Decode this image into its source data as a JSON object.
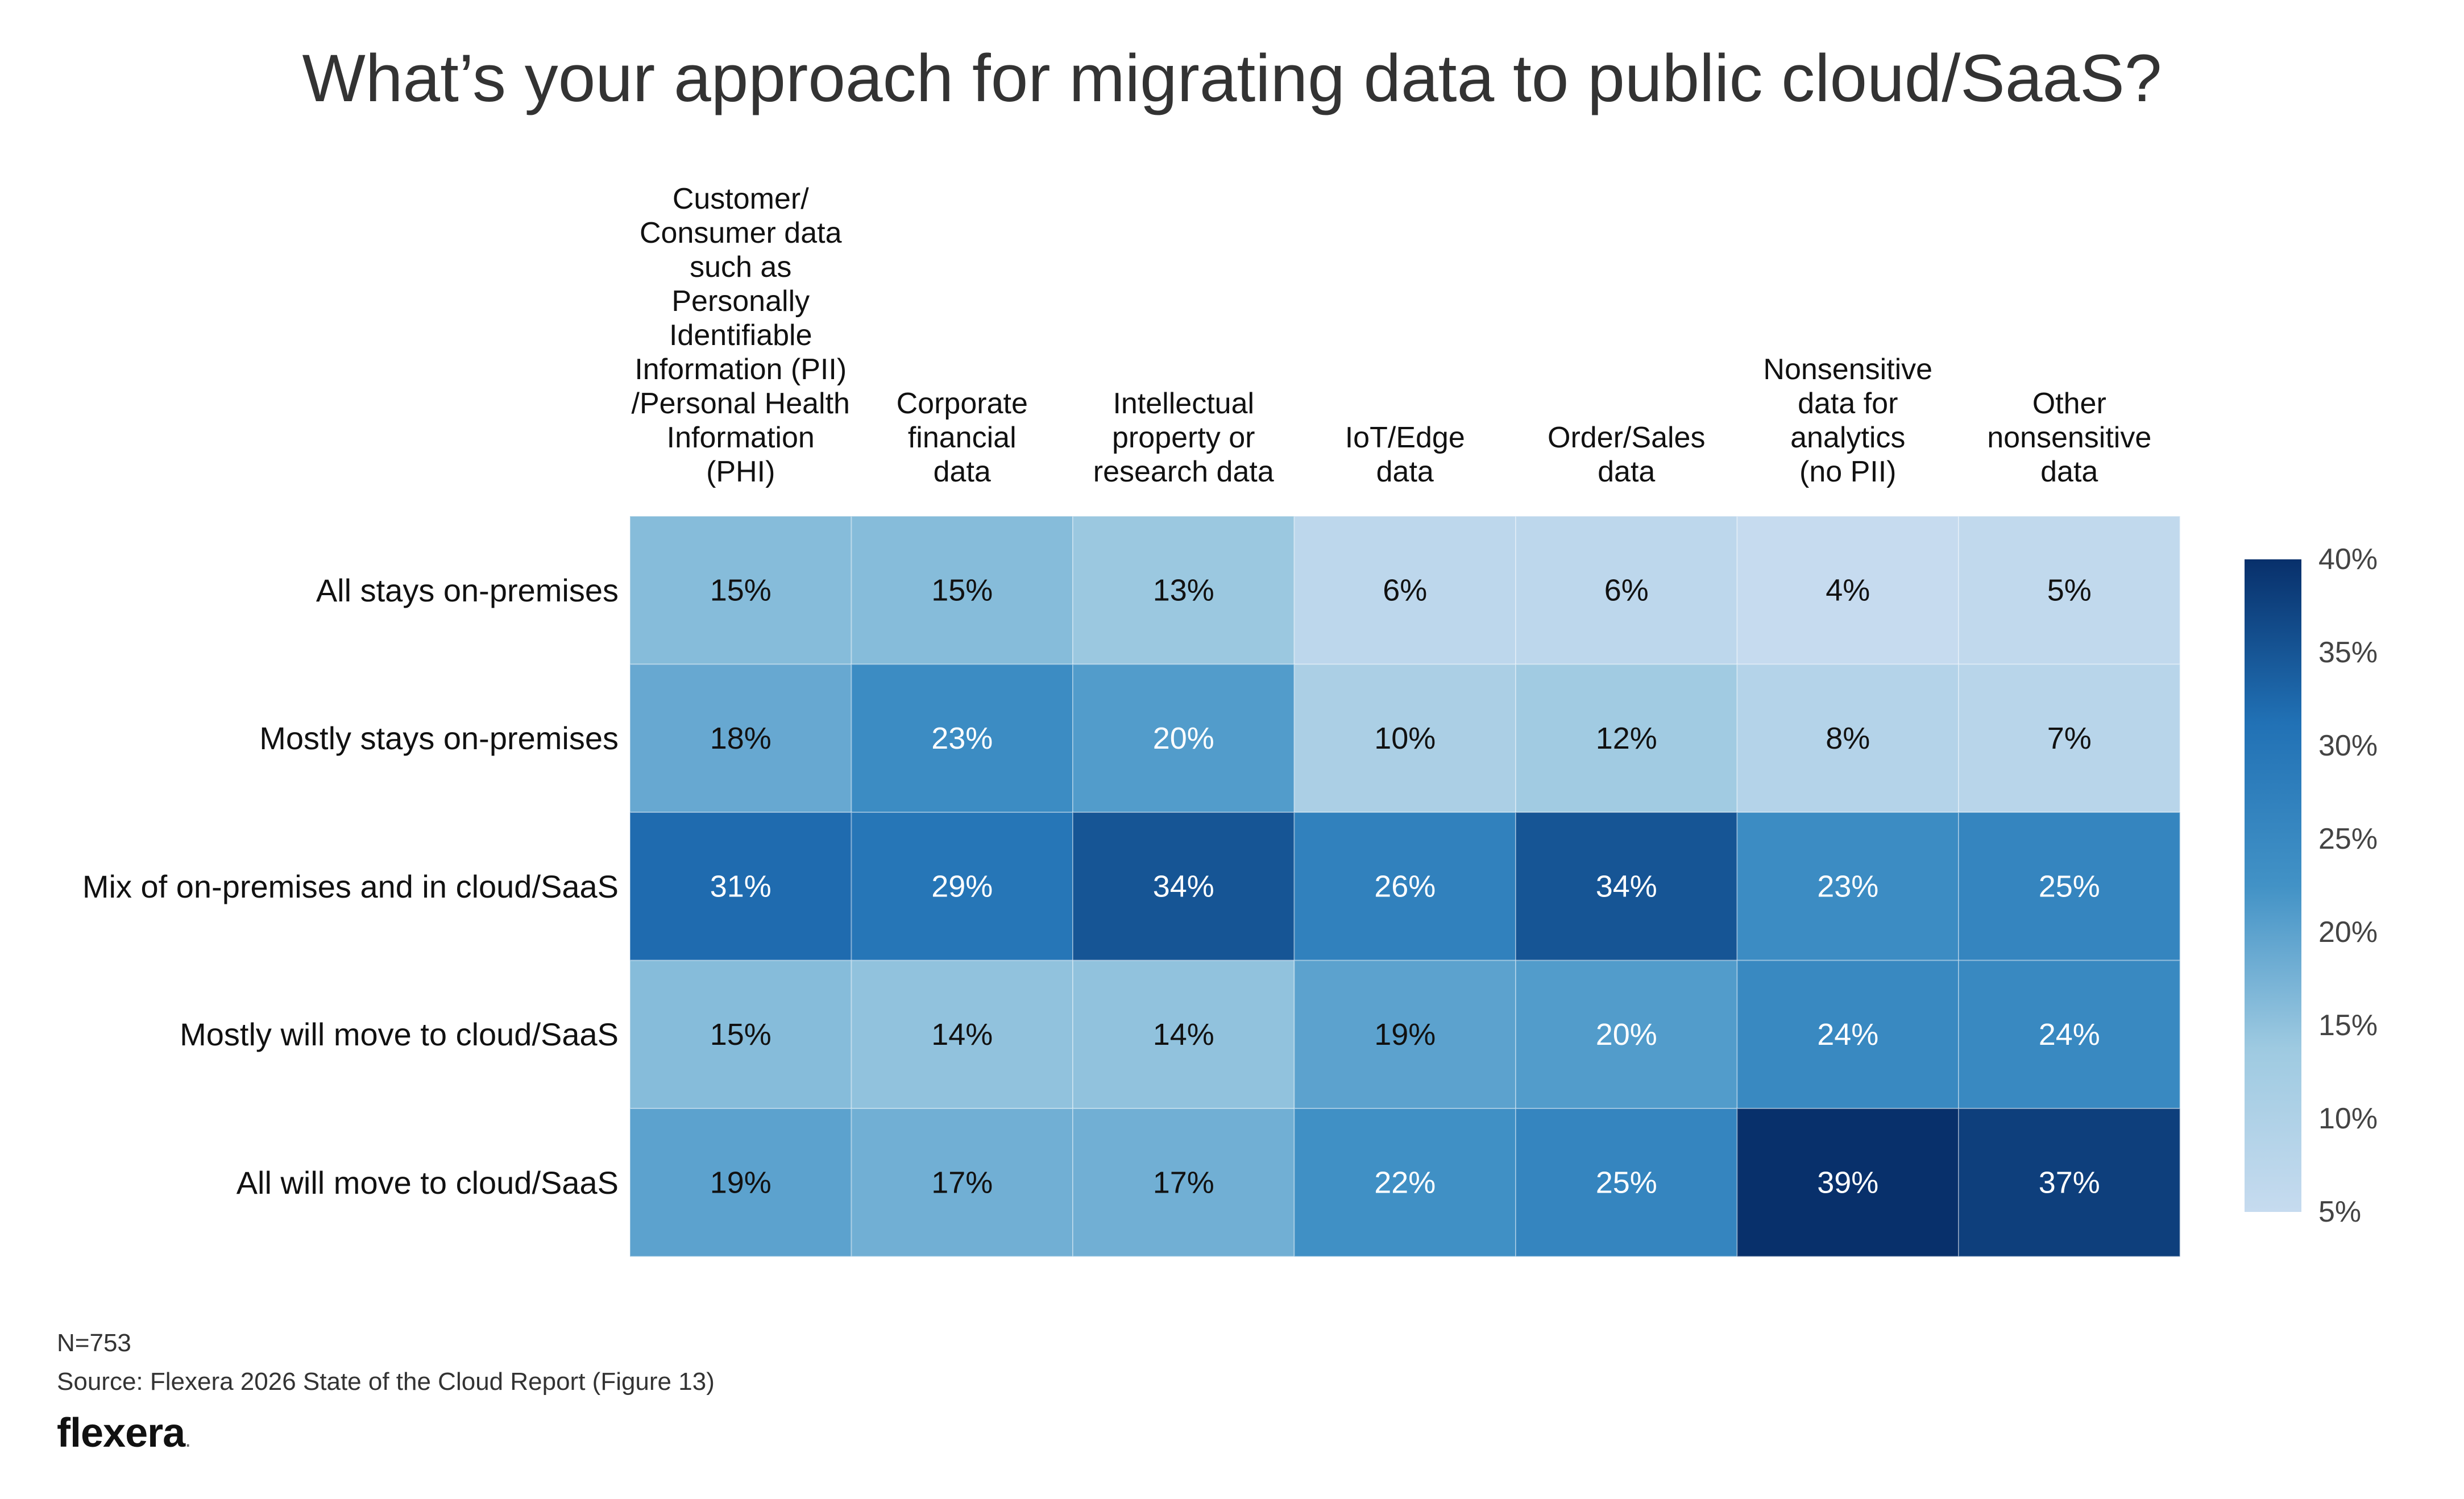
{
  "chart_data": {
    "type": "heatmap",
    "title": "What’s your approach for migrating data to public cloud/SaaS?",
    "columns": [
      "Customer/\nConsumer data\nsuch as\nPersonally\nIdentifiable\nInformation (PII)\n/Personal Health\nInformation (PHI)",
      "Corporate\nfinancial\ndata",
      "Intellectual\nproperty or\nresearch data",
      "IoT/Edge\ndata",
      "Order/Sales\ndata",
      "Nonsensitive\ndata for\nanalytics\n(no PII)",
      "Other\nnonsensitive\ndata"
    ],
    "rows": [
      "All stays on-premises",
      "Mostly stays on-premises",
      "Mix of on-premises and in cloud/SaaS",
      "Mostly will move to cloud/SaaS",
      "All will move to cloud/SaaS"
    ],
    "values": [
      [
        15,
        15,
        13,
        6,
        6,
        4,
        5
      ],
      [
        18,
        23,
        20,
        10,
        12,
        8,
        7
      ],
      [
        31,
        29,
        34,
        26,
        34,
        23,
        25
      ],
      [
        15,
        14,
        14,
        19,
        20,
        24,
        24
      ],
      [
        19,
        17,
        17,
        22,
        25,
        39,
        37
      ]
    ],
    "value_suffix": "%",
    "color_scale": {
      "min": 4,
      "max": 39,
      "low_color": "#c6dbef",
      "high_color": "#08306b",
      "tick_labels": [
        "40%",
        "35%",
        "30%",
        "25%",
        "20%",
        "15%",
        "10%",
        "5%"
      ],
      "tick_values": [
        40,
        35,
        30,
        25,
        20,
        15,
        10,
        5
      ]
    }
  },
  "footer": {
    "sample_size": "N=753",
    "source": "Source: Flexera 2026 State of the Cloud Report (Figure 13)",
    "logo_text": "flexera",
    "logo_dot": "."
  }
}
